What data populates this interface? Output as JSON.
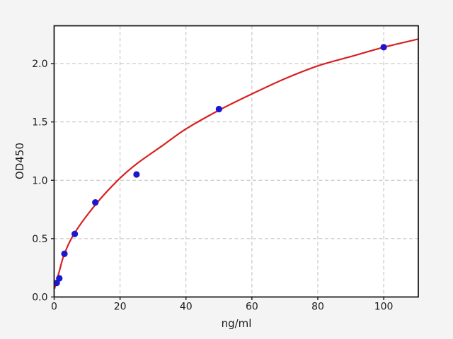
{
  "figure": {
    "background_color": "#f4f4f4",
    "plot_background_color": "#ffffff",
    "axis_color": "#1a1a1a",
    "grid_color": "#bcbcbc"
  },
  "chart_data": {
    "type": "scatter",
    "title": "",
    "xlabel": "ng/ml",
    "ylabel": "OD450",
    "xlim": [
      0,
      110.5
    ],
    "ylim": [
      0,
      2.324
    ],
    "x_ticks": [
      0,
      20,
      40,
      60,
      80,
      100
    ],
    "y_ticks": [
      "0.0",
      "0.5",
      "1.0",
      "1.5",
      "2.0"
    ],
    "grid": true,
    "grid_style": "dashed",
    "legend": "none",
    "series": [
      {
        "name": "standard-points",
        "marker": "circle",
        "color": "#1a17cf",
        "points": [
          [
            0.78,
            0.12
          ],
          [
            1.56,
            0.16
          ],
          [
            3.12,
            0.37
          ],
          [
            6.25,
            0.54
          ],
          [
            12.5,
            0.81
          ],
          [
            25,
            1.05
          ],
          [
            50,
            1.61
          ],
          [
            100,
            2.14
          ]
        ]
      },
      {
        "name": "fitted-curve",
        "marker": "none",
        "color": "#d92020",
        "points": [
          [
            0.1,
            0.07
          ],
          [
            0.78,
            0.14
          ],
          [
            1.56,
            0.22
          ],
          [
            3.12,
            0.37
          ],
          [
            6.25,
            0.55
          ],
          [
            12.5,
            0.79
          ],
          [
            19.3,
            1.0
          ],
          [
            25,
            1.14
          ],
          [
            33,
            1.3
          ],
          [
            40,
            1.44
          ],
          [
            50,
            1.6
          ],
          [
            60,
            1.74
          ],
          [
            70,
            1.87
          ],
          [
            80,
            1.98
          ],
          [
            90,
            2.06
          ],
          [
            100,
            2.14
          ],
          [
            110.5,
            2.21
          ]
        ]
      }
    ]
  }
}
